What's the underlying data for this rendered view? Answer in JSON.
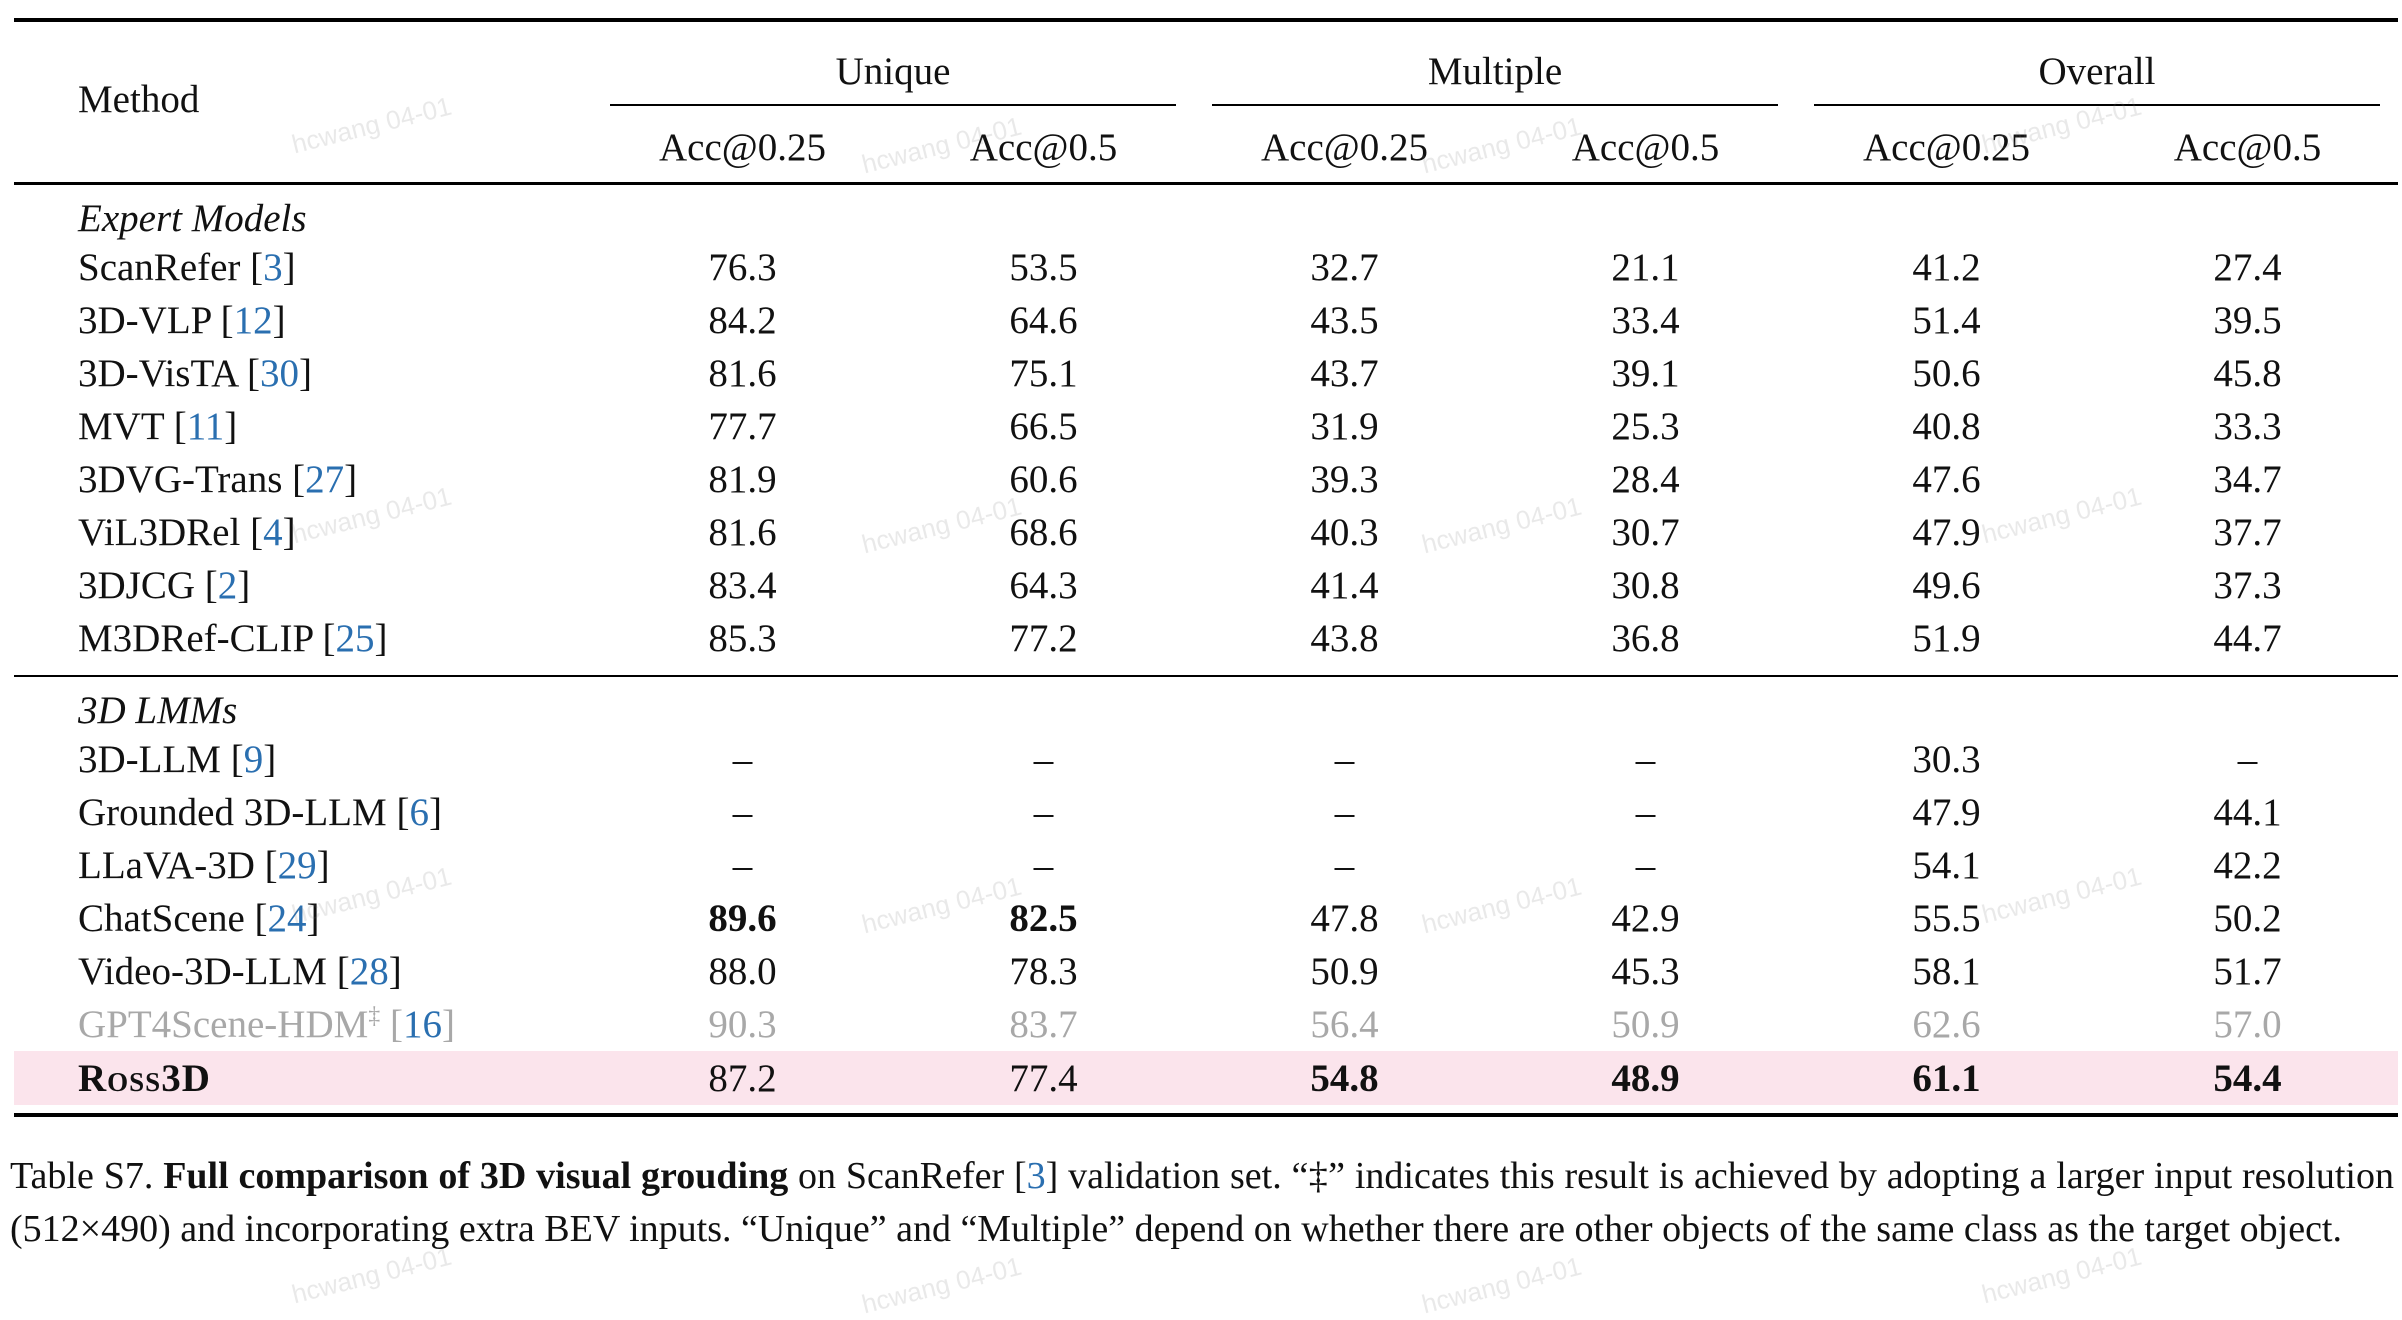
{
  "table": {
    "method_header": "Method",
    "groups": [
      "Unique",
      "Multiple",
      "Overall"
    ],
    "subheaders": [
      "Acc@0.25",
      "Acc@0.5",
      "Acc@0.25",
      "Acc@0.5",
      "Acc@0.25",
      "Acc@0.5"
    ],
    "sections": [
      {
        "title": "Expert Models",
        "rows": [
          {
            "name": "ScanRefer ",
            "ref": "3",
            "values": [
              "76.3",
              "53.5",
              "32.7",
              "21.1",
              "41.2",
              "27.4"
            ]
          },
          {
            "name": "3D-VLP ",
            "ref": "12",
            "values": [
              "84.2",
              "64.6",
              "43.5",
              "33.4",
              "51.4",
              "39.5"
            ]
          },
          {
            "name": "3D-VisTA ",
            "ref": "30",
            "values": [
              "81.6",
              "75.1",
              "43.7",
              "39.1",
              "50.6",
              "45.8"
            ]
          },
          {
            "name": "MVT ",
            "ref": "11",
            "values": [
              "77.7",
              "66.5",
              "31.9",
              "25.3",
              "40.8",
              "33.3"
            ]
          },
          {
            "name": "3DVG-Trans ",
            "ref": "27",
            "values": [
              "81.9",
              "60.6",
              "39.3",
              "28.4",
              "47.6",
              "34.7"
            ]
          },
          {
            "name": "ViL3DRel ",
            "ref": "4",
            "values": [
              "81.6",
              "68.6",
              "40.3",
              "30.7",
              "47.9",
              "37.7"
            ]
          },
          {
            "name": "3DJCG ",
            "ref": "2",
            "values": [
              "83.4",
              "64.3",
              "41.4",
              "30.8",
              "49.6",
              "37.3"
            ]
          },
          {
            "name": "M3DRef-CLIP ",
            "ref": "25",
            "values": [
              "85.3",
              "77.2",
              "43.8",
              "36.8",
              "51.9",
              "44.7"
            ]
          }
        ]
      },
      {
        "title": "3D LMMs",
        "rows": [
          {
            "name": "3D-LLM ",
            "ref": "9",
            "values": [
              "–",
              "–",
              "–",
              "–",
              "30.3",
              "–"
            ]
          },
          {
            "name": "Grounded 3D-LLM ",
            "ref": "6",
            "values": [
              "–",
              "–",
              "–",
              "–",
              "47.9",
              "44.1"
            ]
          },
          {
            "name": "LLaVA-3D ",
            "ref": "29",
            "values": [
              "–",
              "–",
              "–",
              "–",
              "54.1",
              "42.2"
            ]
          },
          {
            "name": "ChatScene ",
            "ref": "24",
            "values": [
              "89.6",
              "82.5",
              "47.8",
              "42.9",
              "55.5",
              "50.2"
            ]
          },
          {
            "name": "Video-3D-LLM ",
            "ref": "28",
            "values": [
              "88.0",
              "78.3",
              "50.9",
              "45.3",
              "58.1",
              "51.7"
            ]
          },
          {
            "name": "GPT4Scene-HDM",
            "sup": "‡",
            "ref": "16",
            "values": [
              "90.3",
              "83.7",
              "56.4",
              "50.9",
              "62.6",
              "57.0"
            ]
          },
          {
            "name": "Ross3D",
            "values": [
              "87.2",
              "77.4",
              "54.8",
              "48.9",
              "61.1",
              "54.4"
            ]
          }
        ]
      }
    ]
  },
  "caption": {
    "label": "Table S7. ",
    "bold": "Full comparison of 3D visual grouding",
    "t1": " on ScanRefer [",
    "ref": "3",
    "t2": "] validation set. “‡” indicates this result is achieved by adopting a larger input resolution (512×490) and incorporating extra BEV inputs. “Unique” and “Multiple” depend on whether there are other objects of the same class as the target object."
  },
  "watermark": "hcwang 04-01",
  "colors": {
    "ref": "#2a6fb0",
    "highlight": "#fbe4ec",
    "muted": "#a8a8a8"
  }
}
